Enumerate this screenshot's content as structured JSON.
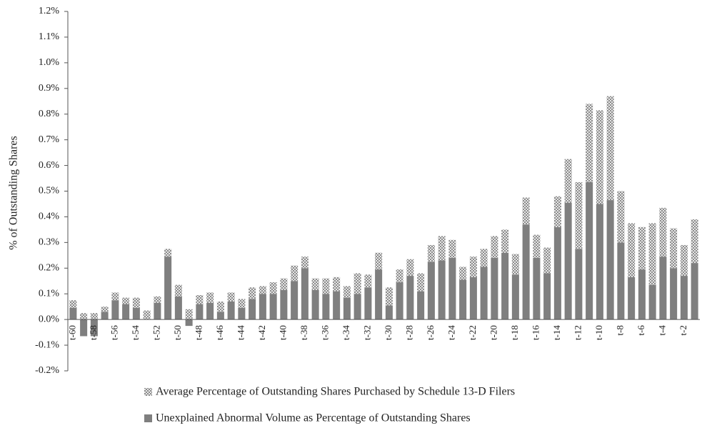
{
  "chart_data": {
    "type": "stacked_bar",
    "y_label": "% of Outstanding Shares",
    "categories": [
      "t-60",
      null,
      "t-58",
      null,
      "t-56",
      null,
      "t-54",
      null,
      "t-52",
      null,
      "t-50",
      null,
      "t-48",
      null,
      "t-46",
      null,
      "t-44",
      null,
      "t-42",
      null,
      "t-40",
      null,
      "t-38",
      null,
      "t-36",
      null,
      "t-34",
      null,
      "t-32",
      null,
      "t-30",
      null,
      "t-28",
      null,
      "t-26",
      null,
      "t-24",
      null,
      "t-22",
      null,
      "t-20",
      null,
      "t-18",
      null,
      "t-16",
      null,
      "t-14",
      null,
      "t-12",
      null,
      "t-10",
      null,
      "t-8",
      null,
      "t-6",
      null,
      "t-4",
      null,
      "t-2",
      null
    ],
    "series": [
      {
        "name": "Unexplained Abnormal Volume as Percentage of Outstanding Shares",
        "color": "#7f7f7f",
        "pattern": "solid",
        "values": [
          0.045,
          -0.065,
          -0.065,
          0.03,
          0.075,
          0.06,
          0.045,
          0,
          0.065,
          0.245,
          0.09,
          -0.025,
          0.06,
          0.065,
          0.03,
          0.07,
          0.045,
          0.08,
          0.1,
          0.1,
          0.115,
          0.15,
          0.2,
          0.115,
          0.1,
          0.11,
          0.085,
          0.1,
          0.125,
          0.195,
          0.055,
          0.145,
          0.17,
          0.11,
          0.225,
          0.23,
          0.24,
          0.155,
          0.165,
          0.205,
          0.24,
          0.26,
          0.175,
          0.37,
          0.24,
          0.18,
          0.36,
          0.455,
          0.275,
          0.535,
          0.45,
          0.465,
          0.3,
          0.165,
          0.195,
          0.135,
          0.245,
          0.2,
          0.17,
          0.22
        ]
      },
      {
        "name": "Average Percentage of Outstanding Shares Purchased by Schedule 13-D Filers",
        "color": "#8c8c8c",
        "pattern": "crosshatch",
        "values": [
          0.03,
          0.025,
          0.025,
          0.02,
          0.03,
          0.025,
          0.04,
          0.035,
          0.025,
          0.03,
          0.045,
          0.04,
          0.035,
          0.04,
          0.04,
          0.035,
          0.035,
          0.045,
          0.03,
          0.045,
          0.045,
          0.06,
          0.045,
          0.045,
          0.06,
          0.055,
          0.045,
          0.08,
          0.05,
          0.065,
          0.07,
          0.05,
          0.065,
          0.07,
          0.065,
          0.095,
          0.07,
          0.05,
          0.08,
          0.07,
          0.085,
          0.09,
          0.08,
          0.105,
          0.09,
          0.1,
          0.12,
          0.17,
          0.26,
          0.305,
          0.365,
          0.405,
          0.2,
          0.21,
          0.165,
          0.24,
          0.19,
          0.155,
          0.12,
          0.17
        ]
      }
    ],
    "ylim": [
      -0.2,
      1.2
    ],
    "yticks": [
      {
        "value": -0.2,
        "label": "-0.2%"
      },
      {
        "value": -0.1,
        "label": "-0.1%"
      },
      {
        "value": 0,
        "label": "0.0%"
      },
      {
        "value": 0.1,
        "label": "0.1%"
      },
      {
        "value": 0.2,
        "label": "0.2%"
      },
      {
        "value": 0.3,
        "label": "0.3%"
      },
      {
        "value": 0.4,
        "label": "0.4%"
      },
      {
        "value": 0.5,
        "label": "0.5%"
      },
      {
        "value": 0.6,
        "label": "0.6%"
      },
      {
        "value": 0.7,
        "label": "0.7%"
      },
      {
        "value": 0.8,
        "label": "0.8%"
      },
      {
        "value": 0.9,
        "label": "0.9%"
      },
      {
        "value": 1.0,
        "label": "1.0%"
      },
      {
        "value": 1.1,
        "label": "1.1%"
      },
      {
        "value": 1.2,
        "label": "1.2%"
      }
    ],
    "grid": false,
    "legend": "bottom"
  }
}
